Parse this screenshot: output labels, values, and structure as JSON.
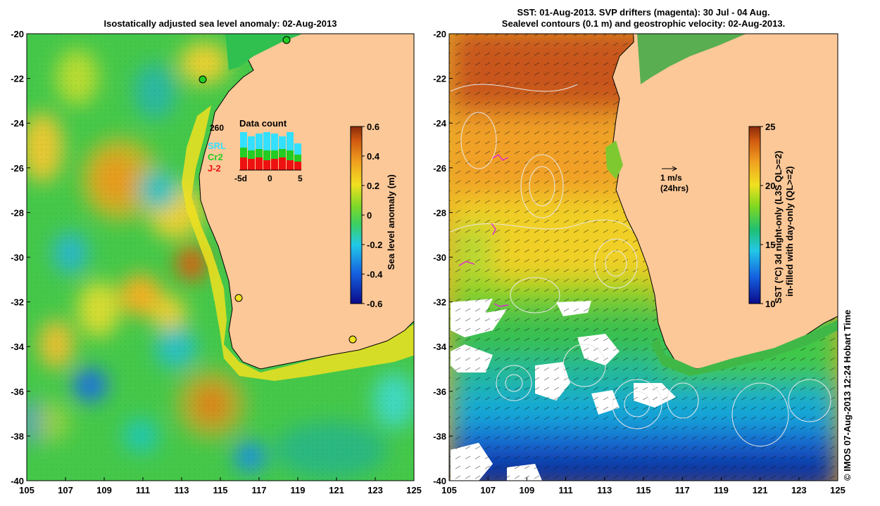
{
  "left_panel": {
    "title": "Isostatically adjusted sea level anomaly: 02-Aug-2013",
    "x_ticks": [
      "105",
      "107",
      "109",
      "111",
      "113",
      "115",
      "117",
      "119",
      "121",
      "123",
      "125"
    ],
    "y_ticks": [
      "-20",
      "-22",
      "-24",
      "-26",
      "-28",
      "-30",
      "-32",
      "-34",
      "-36",
      "-38",
      "-40"
    ],
    "colorbar": {
      "label": "Sea level anomaly (m)",
      "ticks": [
        "0.6",
        "0.4",
        "0.2",
        "0",
        "-0.2",
        "-0.4",
        "-0.6"
      ],
      "range": [
        -0.6,
        0.6
      ]
    },
    "inset": {
      "title": "Data count",
      "count": "260",
      "legend": [
        {
          "label": "SRL",
          "color": "#33e0ff"
        },
        {
          "label": "Cr2",
          "color": "#22cc22"
        },
        {
          "label": "J-2",
          "color": "#ee1111"
        }
      ],
      "x_ticks": [
        "-5d",
        "0",
        "5"
      ]
    }
  },
  "right_panel": {
    "title_line1": "SST: 01-Aug-2013. SVP drifters (magenta): 30 Jul - 04 Aug.",
    "title_line2": "Sealevel contours (0.1 m) and geostrophic velocity: 02-Aug-2013.",
    "x_ticks": [
      "105",
      "107",
      "109",
      "111",
      "113",
      "115",
      "117",
      "119",
      "121",
      "123",
      "125"
    ],
    "y_ticks": [
      "-20",
      "-22",
      "-24",
      "-26",
      "-28",
      "-30",
      "-32",
      "-34",
      "-36",
      "-38",
      "-40"
    ],
    "vector_scale": {
      "speed": "1 m/s",
      "period": "(24hrs)"
    },
    "colorbar": {
      "label_line1": "SST (°C)  3d night-only (L3S QL>=2)",
      "label_line2": "in-filled with day-only (QL>=2)",
      "ticks": [
        "25",
        "20",
        "15",
        "10"
      ],
      "range": [
        10,
        25
      ]
    }
  },
  "credit": "© IMOS 07-Aug-2013 12:24 Hobart Time",
  "colors": {
    "land": "#fcc898",
    "coast": "#000000",
    "contour": "#e8e8e8"
  }
}
